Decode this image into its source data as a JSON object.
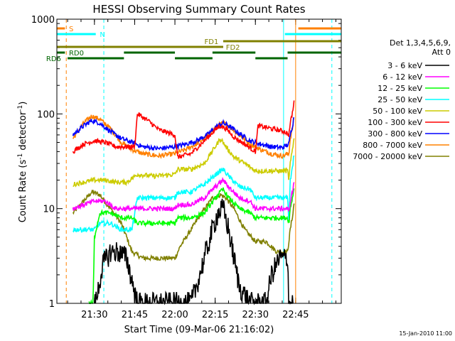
{
  "chart_data": {
    "type": "line",
    "title": "HESSI Observing Summary Count Rates",
    "xlabel": "Start Time (09-Mar-06 21:16:02)",
    "ylabel_main": "Count Rate (s",
    "ylabel_sup1": "-1",
    "ylabel_mid": " detector",
    "ylabel_sup2": "-1",
    "ylabel_end": ")",
    "y_scale": "log",
    "ylim": [
      1,
      1000
    ],
    "x_unit": "minutes after 21:16:02",
    "xlim": [
      0,
      106
    ],
    "x_ticks": [
      {
        "label": "21:30",
        "minutes": 14
      },
      {
        "label": "21:45",
        "minutes": 29
      },
      {
        "label": "22:00",
        "minutes": 44
      },
      {
        "label": "22:15",
        "minutes": 59
      },
      {
        "label": "22:30",
        "minutes": 74
      },
      {
        "label": "22:45",
        "minutes": 89
      }
    ],
    "y_ticks": [
      {
        "label": "1",
        "value": 1
      },
      {
        "label": "10",
        "value": 10
      },
      {
        "label": "100",
        "value": 100
      },
      {
        "label": "1000",
        "value": 1000
      }
    ],
    "legend_header": [
      "Det 1,3,4,5,6,9,",
      "Att 0"
    ],
    "legend_position": "right",
    "series": [
      {
        "name": "3 - 6 keV",
        "color": "#000000",
        "points": [
          [
            14,
            1
          ],
          [
            14.5,
            1
          ],
          [
            17,
            2.5
          ],
          [
            20,
            3.5
          ],
          [
            23,
            3.5
          ],
          [
            26,
            3
          ],
          [
            30,
            1
          ],
          [
            44,
            1
          ],
          [
            50,
            1
          ],
          [
            52,
            1.5
          ],
          [
            55,
            3
          ],
          [
            58,
            6
          ],
          [
            60,
            9
          ],
          [
            62,
            10
          ],
          [
            64,
            6
          ],
          [
            66,
            3
          ],
          [
            68,
            1.5
          ],
          [
            72,
            1
          ],
          [
            78,
            1
          ],
          [
            80,
            2
          ],
          [
            83,
            3
          ],
          [
            86,
            3
          ],
          [
            86.5,
            1
          ],
          [
            87,
            1
          ],
          [
            88,
            1
          ]
        ]
      },
      {
        "name": "6 - 12 keV",
        "color": "#ff00ff",
        "points": [
          [
            6,
            10
          ],
          [
            10,
            11
          ],
          [
            14,
            12
          ],
          [
            18,
            12
          ],
          [
            22,
            10
          ],
          [
            26,
            10
          ],
          [
            30,
            10
          ],
          [
            36,
            10
          ],
          [
            44,
            10
          ],
          [
            45,
            11
          ],
          [
            50,
            11
          ],
          [
            55,
            13
          ],
          [
            60,
            18
          ],
          [
            62,
            20
          ],
          [
            64,
            17
          ],
          [
            68,
            13
          ],
          [
            72,
            12
          ],
          [
            74,
            10
          ],
          [
            78,
            10
          ],
          [
            82,
            10
          ],
          [
            86,
            10
          ],
          [
            86.5,
            9
          ],
          [
            87,
            12
          ],
          [
            88,
            16
          ],
          [
            88.5,
            20
          ]
        ]
      },
      {
        "name": "12 - 25 keV",
        "color": "#00ff00",
        "points": [
          [
            12,
            1
          ],
          [
            13.5,
            1
          ],
          [
            14,
            5
          ],
          [
            16,
            9
          ],
          [
            20,
            9
          ],
          [
            24,
            8
          ],
          [
            28,
            8
          ],
          [
            30,
            7
          ],
          [
            36,
            7
          ],
          [
            44,
            7
          ],
          [
            45,
            8
          ],
          [
            50,
            8
          ],
          [
            55,
            9
          ],
          [
            60,
            14
          ],
          [
            62,
            16
          ],
          [
            64,
            13
          ],
          [
            68,
            10
          ],
          [
            72,
            9
          ],
          [
            74,
            8
          ],
          [
            78,
            8
          ],
          [
            82,
            8
          ],
          [
            86,
            8
          ],
          [
            86.5,
            7
          ],
          [
            87,
            10
          ],
          [
            88,
            14
          ],
          [
            88.5,
            18
          ]
        ]
      },
      {
        "name": "25 - 50 keV",
        "color": "#00ffff",
        "points": [
          [
            6,
            6
          ],
          [
            10,
            6
          ],
          [
            14,
            6
          ],
          [
            16,
            7
          ],
          [
            20,
            7
          ],
          [
            24,
            6
          ],
          [
            28,
            6
          ],
          [
            30,
            13
          ],
          [
            36,
            13
          ],
          [
            44,
            13
          ],
          [
            45,
            15
          ],
          [
            50,
            15
          ],
          [
            55,
            18
          ],
          [
            60,
            24
          ],
          [
            62,
            26
          ],
          [
            64,
            22
          ],
          [
            68,
            17
          ],
          [
            72,
            16
          ],
          [
            74,
            13
          ],
          [
            78,
            13
          ],
          [
            82,
            13
          ],
          [
            86,
            13
          ],
          [
            86.5,
            7
          ],
          [
            87,
            20
          ],
          [
            88,
            30
          ],
          [
            88.5,
            40
          ]
        ]
      },
      {
        "name": "50 - 100 keV",
        "color": "#cccc00",
        "points": [
          [
            6,
            18
          ],
          [
            10,
            19
          ],
          [
            14,
            20
          ],
          [
            18,
            20
          ],
          [
            22,
            19
          ],
          [
            26,
            19
          ],
          [
            30,
            23
          ],
          [
            36,
            22
          ],
          [
            44,
            23
          ],
          [
            45,
            26
          ],
          [
            50,
            26
          ],
          [
            55,
            30
          ],
          [
            59,
            45
          ],
          [
            61,
            55
          ],
          [
            63,
            45
          ],
          [
            66,
            35
          ],
          [
            70,
            30
          ],
          [
            74,
            25
          ],
          [
            78,
            25
          ],
          [
            82,
            25
          ],
          [
            86,
            25
          ],
          [
            86.5,
            20
          ],
          [
            87,
            30
          ],
          [
            88,
            45
          ],
          [
            88.5,
            60
          ]
        ]
      },
      {
        "name": "100 - 300 keV",
        "color": "#ff0000",
        "points": [
          [
            6,
            40
          ],
          [
            10,
            48
          ],
          [
            14,
            52
          ],
          [
            18,
            50
          ],
          [
            22,
            45
          ],
          [
            26,
            45
          ],
          [
            29,
            45
          ],
          [
            30,
            100
          ],
          [
            34,
            85
          ],
          [
            38,
            68
          ],
          [
            44,
            60
          ],
          [
            45,
            35
          ],
          [
            50,
            38
          ],
          [
            55,
            52
          ],
          [
            59,
            68
          ],
          [
            61,
            75
          ],
          [
            63,
            70
          ],
          [
            66,
            57
          ],
          [
            70,
            48
          ],
          [
            74,
            40
          ],
          [
            75,
            75
          ],
          [
            80,
            70
          ],
          [
            85,
            65
          ],
          [
            86.5,
            60
          ],
          [
            87,
            80
          ],
          [
            88,
            110
          ],
          [
            88.5,
            140
          ]
        ]
      },
      {
        "name": "300 - 800 keV",
        "color": "#0000ff",
        "points": [
          [
            6,
            60
          ],
          [
            10,
            75
          ],
          [
            13,
            85
          ],
          [
            16,
            80
          ],
          [
            20,
            65
          ],
          [
            24,
            55
          ],
          [
            28,
            50
          ],
          [
            32,
            45
          ],
          [
            38,
            43
          ],
          [
            44,
            45
          ],
          [
            48,
            48
          ],
          [
            52,
            52
          ],
          [
            56,
            60
          ],
          [
            60,
            75
          ],
          [
            62,
            80
          ],
          [
            64,
            75
          ],
          [
            68,
            62
          ],
          [
            72,
            52
          ],
          [
            76,
            48
          ],
          [
            80,
            45
          ],
          [
            84,
            44
          ],
          [
            86.5,
            48
          ],
          [
            87,
            60
          ],
          [
            88,
            80
          ],
          [
            88.5,
            100
          ]
        ]
      },
      {
        "name": "800 - 7000 keV",
        "color": "#ff8000",
        "points": [
          [
            6,
            55
          ],
          [
            10,
            80
          ],
          [
            13,
            95
          ],
          [
            16,
            88
          ],
          [
            20,
            70
          ],
          [
            24,
            50
          ],
          [
            28,
            42
          ],
          [
            32,
            38
          ],
          [
            38,
            36
          ],
          [
            44,
            38
          ],
          [
            48,
            42
          ],
          [
            52,
            48
          ],
          [
            56,
            58
          ],
          [
            60,
            75
          ],
          [
            62,
            80
          ],
          [
            64,
            75
          ],
          [
            68,
            60
          ],
          [
            72,
            48
          ],
          [
            76,
            42
          ],
          [
            80,
            38
          ],
          [
            84,
            36
          ],
          [
            86.5,
            38
          ],
          [
            87,
            55
          ],
          [
            88,
            75
          ],
          [
            88.5,
            95
          ]
        ]
      },
      {
        "name": "7000 - 20000 keV",
        "color": "#808000",
        "points": [
          [
            6,
            9
          ],
          [
            10,
            12
          ],
          [
            13,
            15
          ],
          [
            16,
            14
          ],
          [
            20,
            10
          ],
          [
            24,
            7
          ],
          [
            26,
            5
          ],
          [
            28,
            3.5
          ],
          [
            32,
            3
          ],
          [
            40,
            3
          ],
          [
            44,
            3
          ],
          [
            46,
            4
          ],
          [
            50,
            6
          ],
          [
            54,
            9
          ],
          [
            58,
            13
          ],
          [
            61,
            14
          ],
          [
            63,
            13
          ],
          [
            66,
            10
          ],
          [
            70,
            6
          ],
          [
            74,
            4.5
          ],
          [
            78,
            4.5
          ],
          [
            82,
            3.5
          ],
          [
            86,
            3.5
          ],
          [
            87,
            6
          ],
          [
            88,
            9
          ],
          [
            88.5,
            12
          ]
        ]
      }
    ],
    "state_bars": [
      {
        "label": "S",
        "color": "#ff8000",
        "label_color": "#ff8000",
        "segments": [
          [
            0,
            3
          ],
          [
            90,
            106
          ]
        ],
        "label_at": 4.5,
        "row": 1
      },
      {
        "label": "N",
        "color": "#00ffff",
        "label_color": "#00ffff",
        "segments": [
          [
            0,
            14.5
          ],
          [
            85,
            106
          ]
        ],
        "label_at": 16,
        "row": 2
      },
      {
        "label": "FD1",
        "color": "#808000",
        "label_color": "#808000",
        "segments": [
          [
            62,
            106
          ]
        ],
        "label_at": 55,
        "row": 3
      },
      {
        "label": "FD2",
        "color": "#808000",
        "label_color": "#808000",
        "segments": [
          [
            0,
            62
          ]
        ],
        "label_at": 63,
        "row": 4
      },
      {
        "label": "RD0",
        "color": "#006400",
        "label_color": "#006400",
        "segments": [
          [
            0,
            3
          ],
          [
            25,
            44
          ],
          [
            58,
            74
          ],
          [
            86,
            106
          ]
        ],
        "label_at": 4.5,
        "row": 5
      },
      {
        "label": "RD6",
        "color": "#006400",
        "label_color": "#006400",
        "segments": [
          [
            4,
            25
          ],
          [
            44,
            58
          ],
          [
            74,
            86
          ]
        ],
        "label_at": -4,
        "row": 6
      }
    ],
    "vertical_markers": [
      {
        "minutes": 0,
        "color": "#00ffff",
        "style": "solid"
      },
      {
        "minutes": 3.5,
        "color": "#ff8000",
        "style": "dashed"
      },
      {
        "minutes": 17.5,
        "color": "#00ffff",
        "style": "dashed"
      },
      {
        "minutes": 84.5,
        "color": "#00ffff",
        "style": "solid"
      },
      {
        "minutes": 89,
        "color": "#ff8000",
        "style": "solid"
      },
      {
        "minutes": 102.5,
        "color": "#00ffff",
        "style": "dashed"
      }
    ]
  },
  "footer": {
    "date_stamp": "15-Jan-2010 11:00"
  }
}
